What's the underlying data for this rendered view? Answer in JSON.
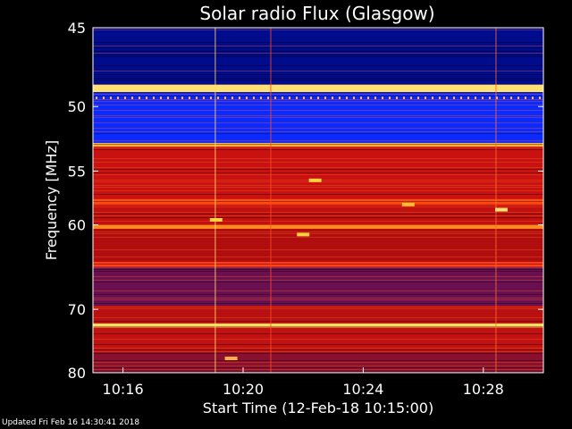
{
  "chart_data": {
    "type": "heatmap",
    "title": "Solar radio Flux (Glasgow)",
    "xlabel": "Start Time (12-Feb-18 10:15:00)",
    "ylabel": "Frequency [MHz]",
    "x_ticks": [
      "10:16",
      "10:20",
      "10:24",
      "10:28"
    ],
    "x_tick_minutes": [
      1,
      5,
      9,
      13
    ],
    "x_range_minutes": [
      0,
      15
    ],
    "y_ticks": [
      45,
      50,
      55,
      60,
      70,
      80
    ],
    "y_range_mhz": [
      45,
      80
    ],
    "y_scale": "reciprocal",
    "colormap": "blue-red-yellow",
    "bands": [
      {
        "f0": 45.0,
        "f1": 48.5,
        "color": "#000c8c"
      },
      {
        "f0": 48.5,
        "f1": 49.0,
        "color": "#ffe070"
      },
      {
        "f0": 49.0,
        "f1": 52.7,
        "color": "#0a2aff"
      },
      {
        "f0": 52.7,
        "f1": 53.0,
        "color": "#ffb040"
      },
      {
        "f0": 53.0,
        "f1": 57.5,
        "color": "#c81212"
      },
      {
        "f0": 57.5,
        "f1": 58.0,
        "color": "#ff4a10"
      },
      {
        "f0": 58.0,
        "f1": 60.0,
        "color": "#c01010"
      },
      {
        "f0": 60.0,
        "f1": 60.4,
        "color": "#ff8a20"
      },
      {
        "f0": 60.4,
        "f1": 64.0,
        "color": "#b00e0e"
      },
      {
        "f0": 64.0,
        "f1": 64.6,
        "color": "#ff3a18"
      },
      {
        "f0": 64.6,
        "f1": 69.5,
        "color": "#6a1050"
      },
      {
        "f0": 69.5,
        "f1": 72.0,
        "color": "#b81010"
      },
      {
        "f0": 72.0,
        "f1": 72.6,
        "color": "#ffd860"
      },
      {
        "f0": 72.6,
        "f1": 76.5,
        "color": "#c01212"
      },
      {
        "f0": 76.5,
        "f1": 80.0,
        "color": "#8a1030"
      }
    ],
    "hot_spots": [
      {
        "t": 7.4,
        "f": 55.8,
        "color": "#ffd040"
      },
      {
        "t": 7.0,
        "f": 61.0,
        "color": "#ffd040"
      },
      {
        "t": 10.5,
        "f": 58.0,
        "color": "#ffc030"
      },
      {
        "t": 4.6,
        "f": 77.5,
        "color": "#ffb040"
      },
      {
        "t": 13.6,
        "f": 58.5,
        "color": "#ffe070"
      },
      {
        "t": 4.1,
        "f": 59.5,
        "color": "#ffd040"
      }
    ]
  },
  "footer": "Updated Fri Feb 16 14:30:41 2018"
}
